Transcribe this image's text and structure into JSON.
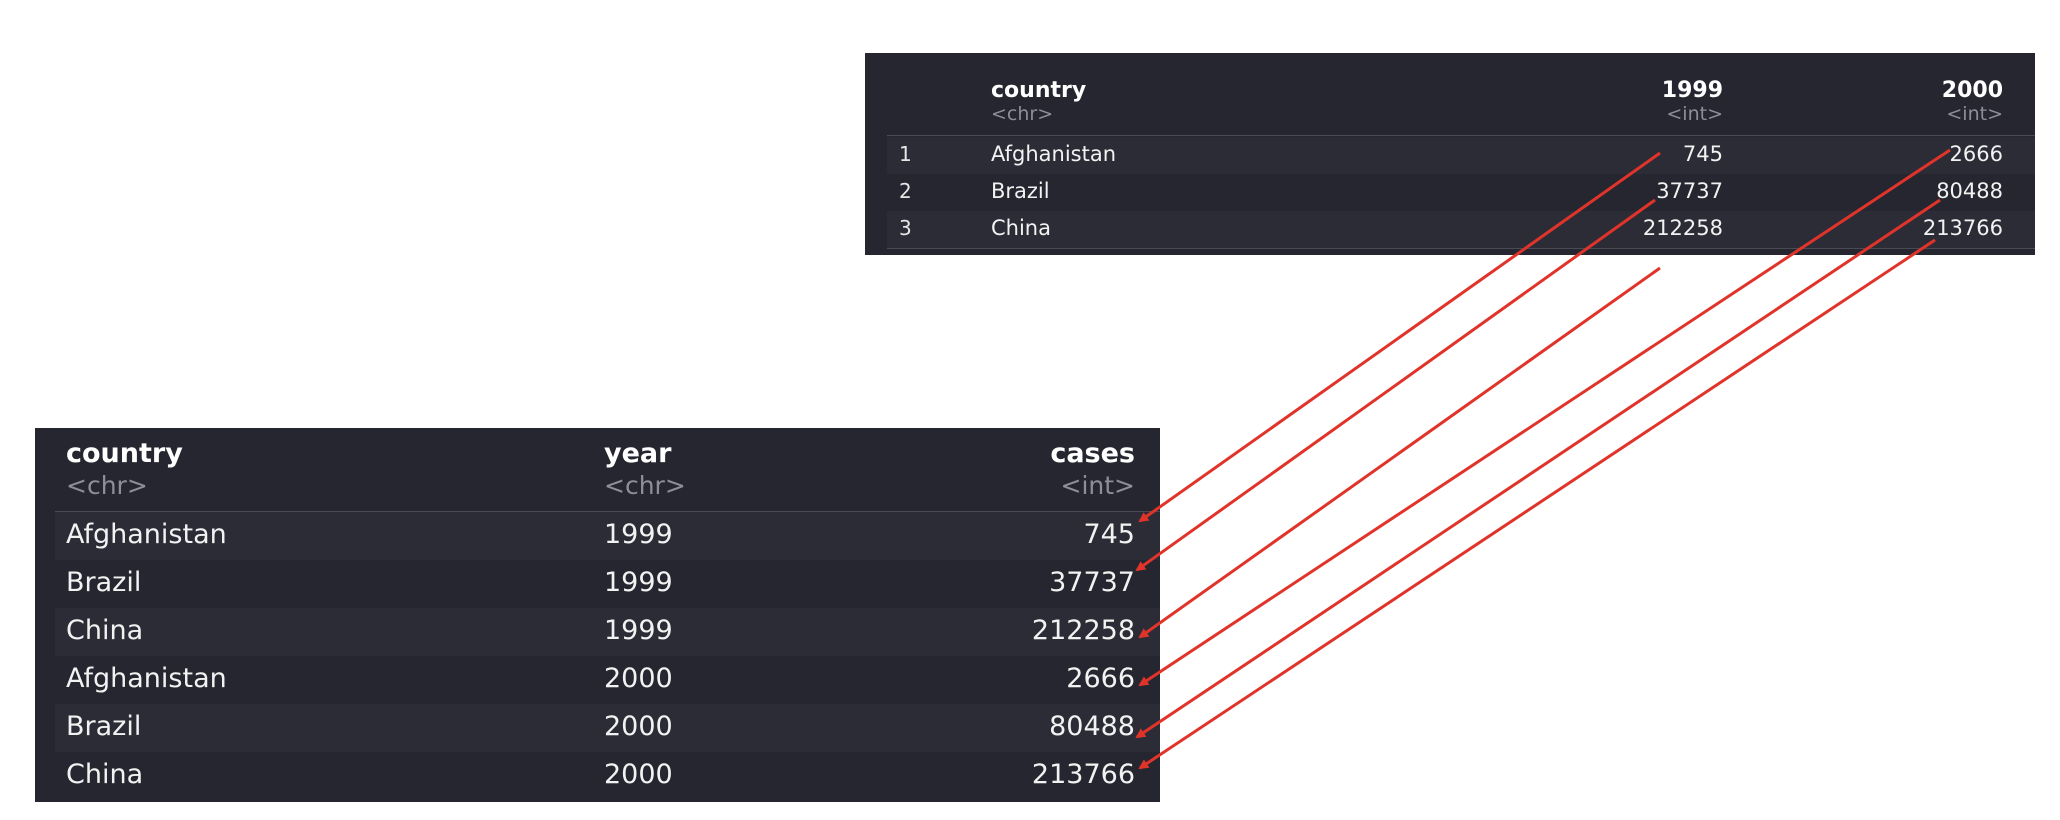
{
  "wide_table": {
    "columns": [
      {
        "name": "country",
        "type": "<chr>"
      },
      {
        "name": "1999",
        "type": "<int>"
      },
      {
        "name": "2000",
        "type": "<int>"
      }
    ],
    "rows": [
      {
        "index": "1",
        "country": "Afghanistan",
        "y1999": "745",
        "y2000": "2666"
      },
      {
        "index": "2",
        "country": "Brazil",
        "y1999": "37737",
        "y2000": "80488"
      },
      {
        "index": "3",
        "country": "China",
        "y1999": "212258",
        "y2000": "213766"
      }
    ]
  },
  "long_table": {
    "columns": [
      {
        "name": "country",
        "type": "<chr>"
      },
      {
        "name": "year",
        "type": "<chr>"
      },
      {
        "name": "cases",
        "type": "<int>"
      }
    ],
    "rows": [
      {
        "country": "Afghanistan",
        "year": "1999",
        "cases": "745"
      },
      {
        "country": "Brazil",
        "year": "1999",
        "cases": "37737"
      },
      {
        "country": "China",
        "year": "1999",
        "cases": "212258"
      },
      {
        "country": "Afghanistan",
        "year": "2000",
        "cases": "2666"
      },
      {
        "country": "Brazil",
        "year": "2000",
        "cases": "80488"
      },
      {
        "country": "China",
        "year": "2000",
        "cases": "213766"
      }
    ]
  },
  "colors": {
    "panel_bg": "#262630",
    "arrow": "#e0342a"
  }
}
